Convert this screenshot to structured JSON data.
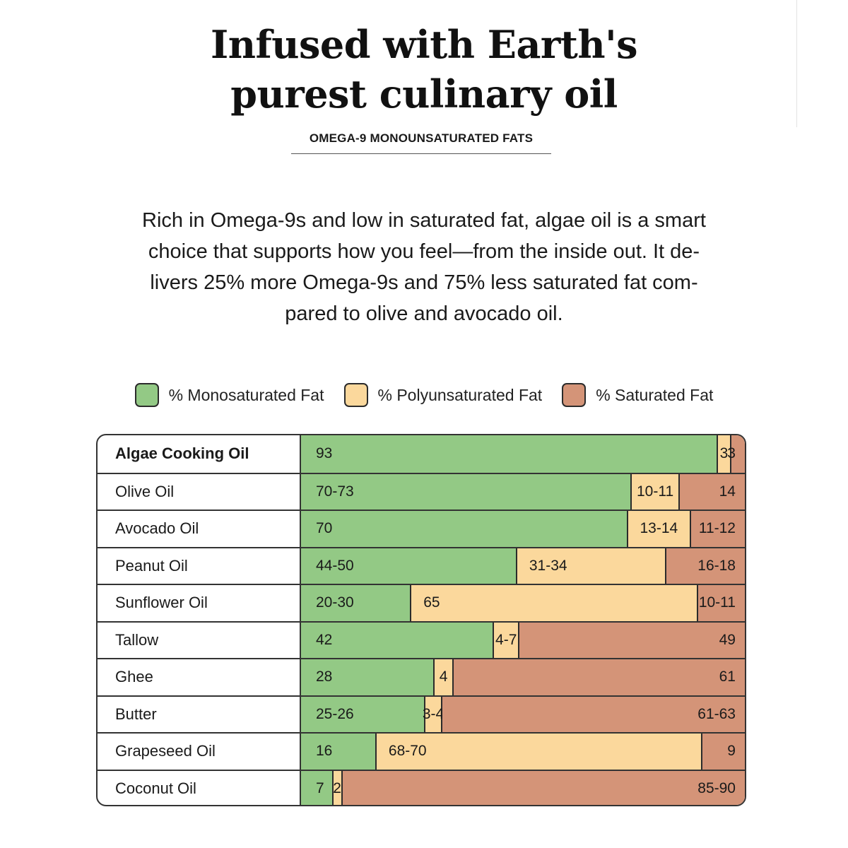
{
  "header": {
    "title_lines": [
      "Infused with Earth's",
      "purest culinary oil"
    ],
    "subtitle": "OMEGA-9 MONOUNSATURATED FATS"
  },
  "intro": {
    "lines": [
      "Rich in Omega-9s and low in saturated fat, algae oil is a smart",
      "choice that supports how you feel—from the inside out. It de-",
      "livers 25% more Omega-9s and 75% less saturated fat com-",
      "pared to olive and avocado oil."
    ]
  },
  "chart_data": {
    "type": "bar",
    "stacked": true,
    "orientation": "horizontal",
    "colors": {
      "mono": "#93c985",
      "poly": "#fbd89c",
      "sat": "#d49478"
    },
    "legend": [
      {
        "key": "mono",
        "label": "% Monosaturated Fat"
      },
      {
        "key": "poly",
        "label": "% Polyunsaturated Fat"
      },
      {
        "key": "sat",
        "label": "% Saturated Fat"
      }
    ],
    "rows": [
      {
        "name": "Algae Cooking Oil",
        "highlight": true,
        "mono": 93,
        "poly": 3,
        "sat": 3,
        "mono_label": "93",
        "poly_label": "3",
        "sat_label": "3"
      },
      {
        "name": "Olive Oil",
        "highlight": false,
        "mono": 71.5,
        "poly": 10.5,
        "sat": 14,
        "mono_label": "70-73",
        "poly_label": "10-11",
        "sat_label": "14"
      },
      {
        "name": "Avocado Oil",
        "highlight": false,
        "mono": 70,
        "poly": 13.5,
        "sat": 11.5,
        "mono_label": "70",
        "poly_label": "13-14",
        "sat_label": "11-12"
      },
      {
        "name": "Peanut Oil",
        "highlight": false,
        "mono": 47,
        "poly": 32.5,
        "sat": 17,
        "mono_label": "44-50",
        "poly_label": "31-34",
        "sat_label": "16-18"
      },
      {
        "name": "Sunflower Oil",
        "highlight": false,
        "mono": 25,
        "poly": 65,
        "sat": 10.5,
        "mono_label": "20-30",
        "poly_label": "65",
        "sat_label": "10-11"
      },
      {
        "name": "Tallow",
        "highlight": false,
        "mono": 42,
        "poly": 5.5,
        "sat": 49,
        "mono_label": "42",
        "poly_label": "4-7",
        "sat_label": "49"
      },
      {
        "name": "Ghee",
        "highlight": false,
        "mono": 28,
        "poly": 4,
        "sat": 61,
        "mono_label": "28",
        "poly_label": "4",
        "sat_label": "61"
      },
      {
        "name": "Butter",
        "highlight": false,
        "mono": 25.5,
        "poly": 3.5,
        "sat": 62,
        "mono_label": "25-26",
        "poly_label": "3-4",
        "sat_label": "61-63"
      },
      {
        "name": "Grapeseed Oil",
        "highlight": false,
        "mono": 16,
        "poly": 69,
        "sat": 9,
        "mono_label": "16",
        "poly_label": "68-70",
        "sat_label": "9"
      },
      {
        "name": "Coconut Oil",
        "highlight": false,
        "mono": 7,
        "poly": 2,
        "sat": 87.5,
        "mono_label": "7",
        "poly_label": "2",
        "sat_label": "85-90"
      }
    ]
  }
}
